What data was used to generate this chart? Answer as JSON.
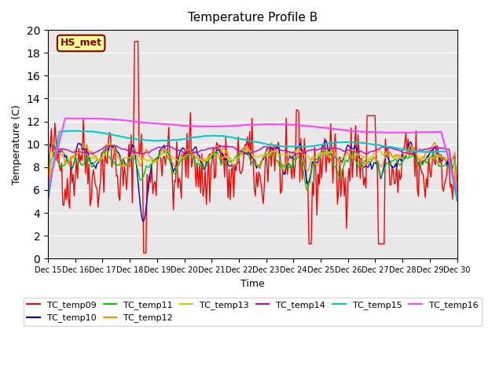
{
  "title": "Temperature Profile B",
  "xlabel": "Time",
  "ylabel": "Temperature (C)",
  "ylim": [
    0,
    20
  ],
  "background_color": "#e8e8e8",
  "grid_color": "white",
  "annotation_text": "HS_met",
  "annotation_box_color": "#ffff99",
  "annotation_border_color": "#8b0000",
  "x_tick_labels": [
    "Dec 15",
    "Dec 16",
    "Dec 17",
    "Dec 18",
    "Dec 19",
    "Dec 20",
    "Dec 21",
    "Dec 22",
    "Dec 23",
    "Dec 24",
    "Dec 25",
    "Dec 26",
    "Dec 27",
    "Dec 28",
    "Dec 29",
    "Dec 30"
  ],
  "series_colors": {
    "TC_temp09": "#ff0000",
    "TC_temp10": "#0000cc",
    "TC_temp11": "#00cc00",
    "TC_temp12": "#ff8800",
    "TC_temp13": "#cccc00",
    "TC_temp14": "#cc00cc",
    "TC_temp15": "#00cccc",
    "TC_temp16": "#ff44ff"
  }
}
